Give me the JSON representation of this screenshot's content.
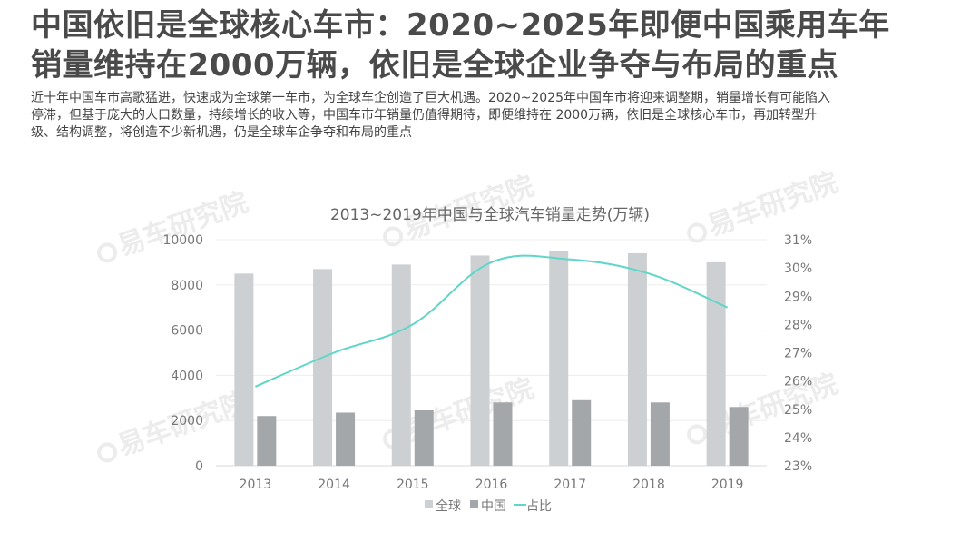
{
  "headline": {
    "line1": "中国依旧是全球核心车市：2020~2025年即便中国乘用车年",
    "line2": "销量维持在2000万辆，依旧是全球企业争夺与布局的重点"
  },
  "subtitle": {
    "line1": "近十年中国车市高歌猛进，快速成为全球第一车市，为全球车企创造了巨大机遇。2020~2025年中国车市将迎来调整期，销量增长有可能陷入",
    "line2": "停滞，但基于庞大的人口数量，持续增长的收入等，中国车市年销量仍值得期待，即便维持在 2000万辆，依旧是全球核心车市，再加转型升",
    "line3": "级、结构调整，将创造不少新机遇，仍是全球车企争夺和布局的重点"
  },
  "watermark": {
    "text": "易车研究院"
  },
  "chart_data": {
    "type": "bar",
    "title": "2013~2019年中国与全球汽车销量走势(万辆)",
    "categories": [
      "2013",
      "2014",
      "2015",
      "2016",
      "2017",
      "2018",
      "2019"
    ],
    "series": [
      {
        "name": "全球",
        "type": "bar",
        "axis": "left",
        "color": "#cdd0d2",
        "values": [
          8500,
          8700,
          8900,
          9300,
          9500,
          9400,
          9000
        ]
      },
      {
        "name": "中国",
        "type": "bar",
        "axis": "left",
        "color": "#a4a7aa",
        "values": [
          2200,
          2350,
          2450,
          2800,
          2900,
          2800,
          2600
        ]
      },
      {
        "name": "占比",
        "type": "line",
        "axis": "right",
        "color": "#5fd6c8",
        "values": [
          25.8,
          27.0,
          28.0,
          30.2,
          30.3,
          29.8,
          28.6
        ]
      }
    ],
    "ylim_left": [
      0,
      10000
    ],
    "yticks_left": [
      "0",
      "2000",
      "4000",
      "6000",
      "8000",
      "10000"
    ],
    "ylim_right": [
      23,
      31
    ],
    "yticks_right": [
      "23%",
      "24%",
      "25%",
      "26%",
      "27%",
      "28%",
      "29%",
      "30%",
      "31%"
    ],
    "grid": true,
    "legend_position": "bottom"
  }
}
